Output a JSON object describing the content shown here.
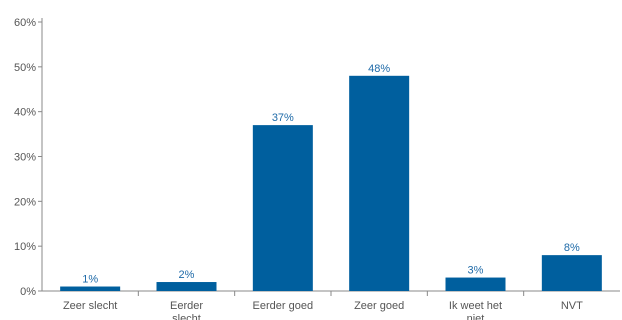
{
  "chart_data": {
    "type": "bar",
    "categories": [
      "Zeer slecht",
      "Eerder slecht",
      "Eerder goed",
      "Zeer goed",
      "Ik weet het niet",
      "NVT"
    ],
    "category_lines": [
      [
        "Zeer slecht"
      ],
      [
        "Eerder",
        "slecht"
      ],
      [
        "Eerder goed"
      ],
      [
        "Zeer goed"
      ],
      [
        "Ik weet het",
        "niet"
      ],
      [
        "NVT"
      ]
    ],
    "values": [
      1,
      2,
      37,
      48,
      3,
      8
    ],
    "value_labels": [
      "1%",
      "2%",
      "37%",
      "48%",
      "3%",
      "8%"
    ],
    "yticks": [
      0,
      10,
      20,
      30,
      40,
      50,
      60
    ],
    "ytick_labels": [
      "0%",
      "10%",
      "20%",
      "30%",
      "40%",
      "50%",
      "60%"
    ],
    "ylim": [
      0,
      60
    ],
    "title": "",
    "xlabel": "",
    "ylabel": "",
    "grid": false,
    "bar_color": "#005f9e",
    "label_color": "#1e6aa8"
  }
}
